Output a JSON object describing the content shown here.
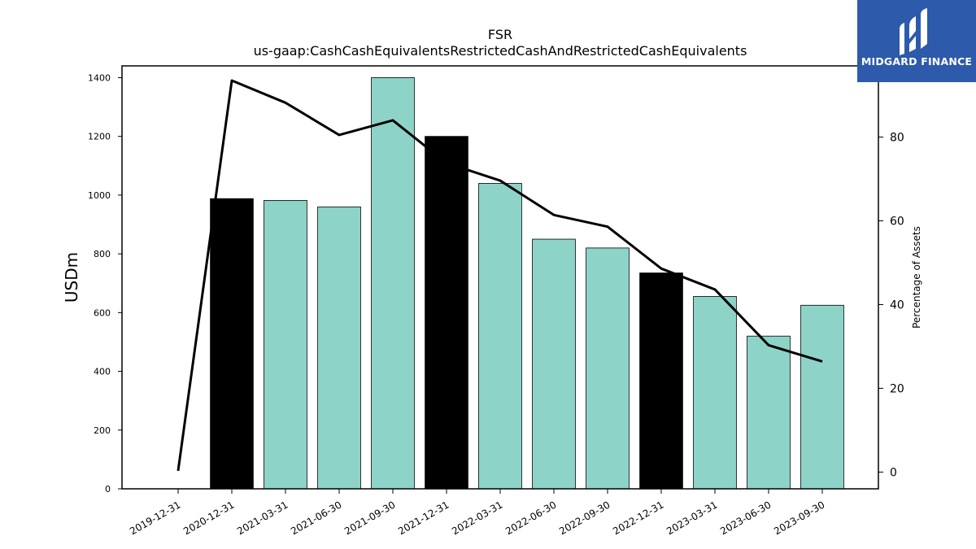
{
  "chart_data": {
    "type": "bar",
    "title": "FSR",
    "subtitle": "us-gaap:CashCashEquivalentsRestrictedCashAndRestrictedCashEquivalents",
    "ylabel": "USDm",
    "y2label": "Percentage of Assets",
    "categories": [
      "2019-12-31",
      "2020-12-31",
      "2021-03-31",
      "2021-06-30",
      "2021-09-30",
      "2021-12-31",
      "2022-03-31",
      "2022-06-30",
      "2022-09-30",
      "2022-12-31",
      "2023-03-31",
      "2023-06-30",
      "2023-09-30"
    ],
    "values": [
      0,
      988,
      982,
      960,
      1400,
      1200,
      1040,
      850,
      820,
      735,
      655,
      520,
      625
    ],
    "highlight": [
      false,
      true,
      false,
      false,
      false,
      true,
      false,
      false,
      false,
      true,
      false,
      false,
      false
    ],
    "line_values": [
      0.3,
      93.5,
      88.2,
      80.5,
      84.0,
      73.8,
      69.6,
      61.4,
      58.6,
      48.6,
      43.6,
      30.3,
      26.4
    ],
    "ylim": [
      0,
      1440
    ],
    "y2lim": [
      -4,
      97
    ],
    "yticks": [
      0,
      200,
      400,
      600,
      800,
      1000,
      1200,
      1400
    ],
    "y2ticks": [
      0,
      20,
      40,
      60,
      80
    ],
    "colors": {
      "bar": "#8dd3c7",
      "highlight_bar": "#000000",
      "line": "#000000"
    }
  },
  "logo": {
    "text": "MIDGARD FINANCE",
    "bg": "#2d5aab"
  }
}
